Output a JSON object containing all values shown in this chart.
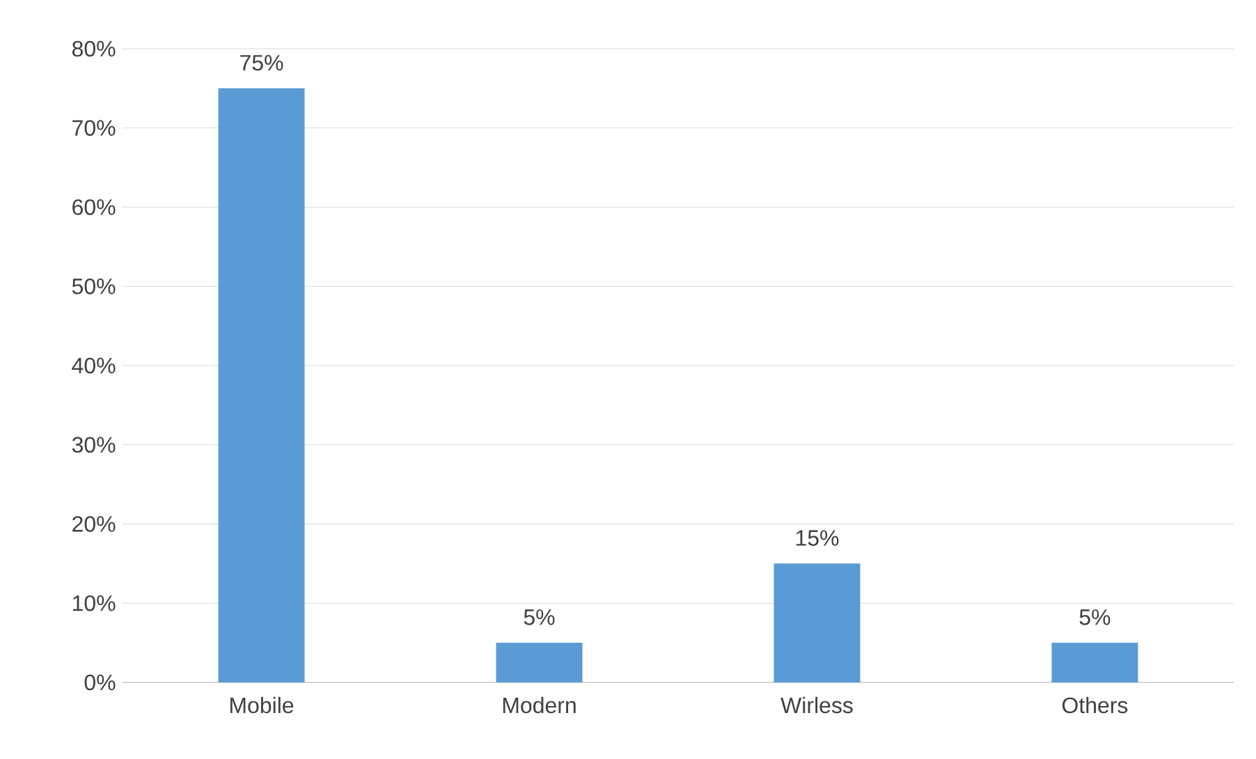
{
  "chart_data": {
    "type": "bar",
    "categories": [
      "Mobile",
      "Modern",
      "Wirless",
      "Others"
    ],
    "values": [
      75,
      5,
      15,
      5
    ],
    "value_labels": [
      "75%",
      "5%",
      "15%",
      "5%"
    ],
    "color": "#5b9bd5",
    "ylim": [
      0,
      80
    ],
    "yticks": [
      {
        "value": 0,
        "label": "0%"
      },
      {
        "value": 10,
        "label": "10%"
      },
      {
        "value": 20,
        "label": "20%"
      },
      {
        "value": 30,
        "label": "30%"
      },
      {
        "value": 40,
        "label": "40%"
      },
      {
        "value": 50,
        "label": "50%"
      },
      {
        "value": 60,
        "label": "60%"
      },
      {
        "value": 70,
        "label": "70%"
      },
      {
        "value": 80,
        "label": "80%"
      }
    ],
    "grid": "y"
  }
}
